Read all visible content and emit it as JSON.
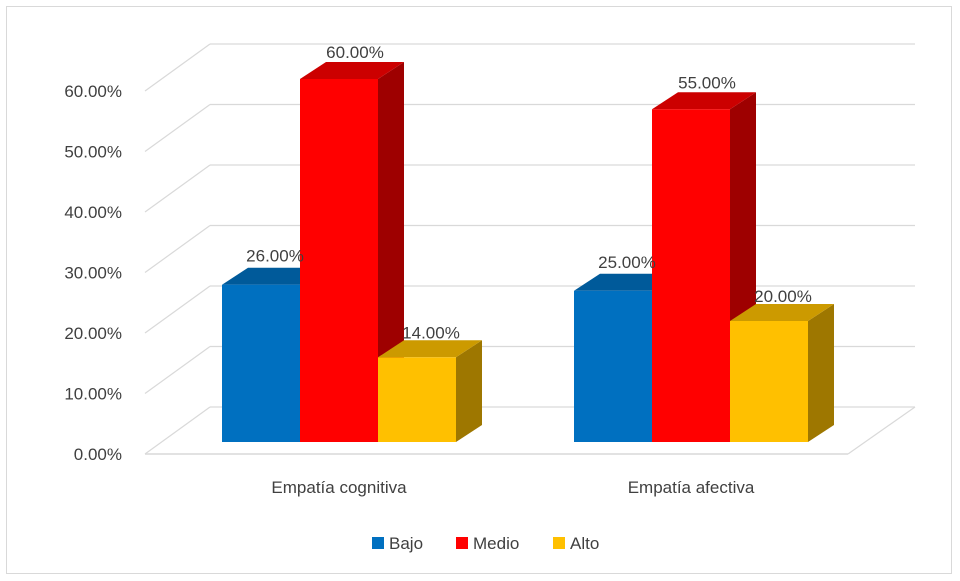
{
  "chart_data": {
    "type": "bar",
    "style": "3d-clustered-column",
    "categories": [
      "Empatía cognitiva",
      "Empatía afectiva"
    ],
    "series": [
      {
        "name": "Bajo",
        "color": "#0070C0",
        "values": [
          26,
          25
        ],
        "labels": [
          "26.00%",
          "25.00%"
        ]
      },
      {
        "name": "Medio",
        "color": "#FF0000",
        "values": [
          60,
          55
        ],
        "labels": [
          "60.00%",
          "55.00%"
        ]
      },
      {
        "name": "Alto",
        "color": "#FFC000",
        "values": [
          14,
          20
        ],
        "labels": [
          "14.00%",
          "20.00%"
        ]
      }
    ],
    "ylim": [
      0,
      60
    ],
    "yticks": [
      "0.00%",
      "10.00%",
      "20.00%",
      "30.00%",
      "40.00%",
      "50.00%",
      "60.00%"
    ],
    "grid": true,
    "legend": "bottom"
  }
}
